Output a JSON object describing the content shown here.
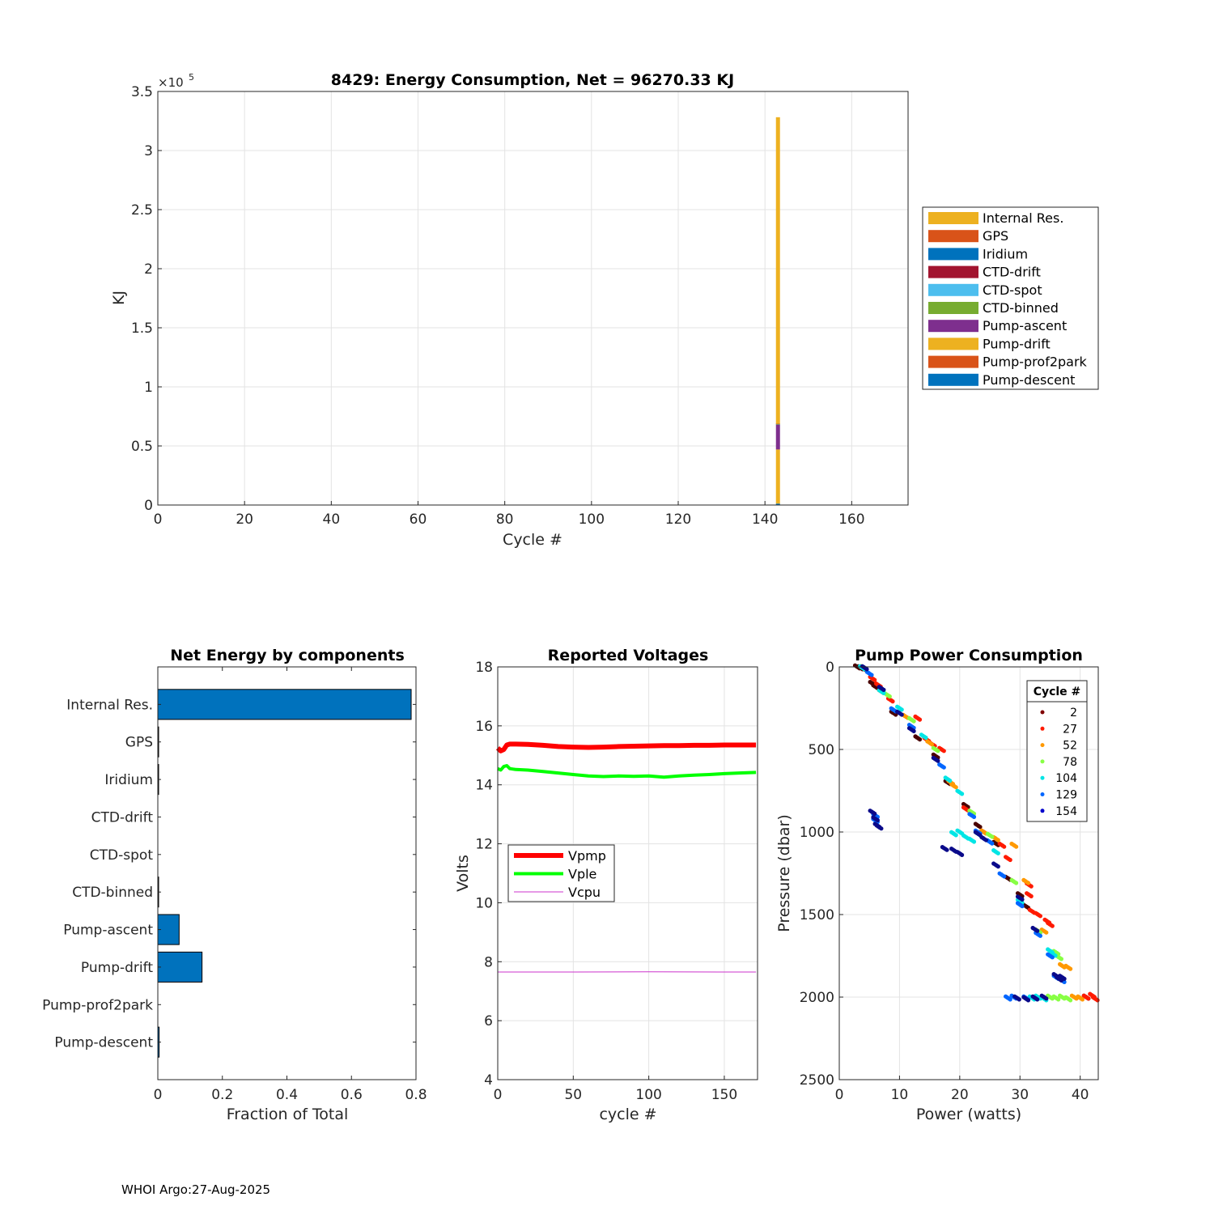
{
  "footer": "WHOI Argo:27-Aug-2025",
  "colors": {
    "yellow": "#EDB120",
    "orange": "#D95319",
    "blue": "#0072BD",
    "darkred": "#A2142F",
    "lightblue": "#4DBEEE",
    "green": "#77AC30",
    "purple": "#7E2F8E",
    "bar_fill": "#0072BD",
    "vpmp": "#FF0000",
    "vple": "#00FF00",
    "vcpu": "#CC33CC"
  },
  "chart_data": [
    {
      "type": "bar",
      "id": "energy",
      "title": "8429: Energy Consumption,  Net = 96270.33 KJ",
      "xlabel": "Cycle #",
      "ylabel": "KJ",
      "y_exponent_label": "×10",
      "y_exponent": "5",
      "xlim": [
        0,
        173
      ],
      "ylim": [
        0,
        350000
      ],
      "xticks": [
        0,
        20,
        40,
        60,
        80,
        100,
        120,
        140,
        160
      ],
      "yticks": [
        0,
        50000,
        100000,
        150000,
        200000,
        250000,
        300000,
        350000
      ],
      "ytick_labels": [
        "0",
        "0.5",
        "1",
        "1.5",
        "2",
        "2.5",
        "3",
        "3.5"
      ],
      "grid": true,
      "stacked": true,
      "legend": [
        "Internal Res.",
        "GPS",
        "Iridium",
        "CTD-drift",
        "CTD-spot",
        "CTD-binned",
        "Pump-ascent",
        "Pump-drift",
        "Pump-prof2park",
        "Pump-descent"
      ],
      "legend_colors": [
        "#EDB120",
        "#D95319",
        "#0072BD",
        "#A2142F",
        "#4DBEEE",
        "#77AC30",
        "#7E2F8E",
        "#EDB120",
        "#D95319",
        "#0072BD"
      ],
      "bar_x": 143,
      "stack_order_bottom_up": [
        "Pump-descent",
        "Pump-prof2park",
        "Pump-drift",
        "Pump-ascent",
        "CTD-binned",
        "CTD-spot",
        "CTD-drift",
        "Iridium",
        "GPS",
        "Internal Res."
      ],
      "stack_values": [
        1200,
        0,
        45800,
        21000,
        600,
        0,
        0,
        100,
        100,
        259400
      ]
    },
    {
      "type": "bar",
      "id": "net_energy",
      "orientation": "horizontal",
      "title": "Net Energy by components",
      "xlabel": "Fraction of Total",
      "xlim": [
        0,
        0.8
      ],
      "xticks": [
        0,
        0.2,
        0.4,
        0.6,
        0.8
      ],
      "xtick_labels": [
        "0",
        "0.2",
        "0.4",
        "0.6",
        "0.8"
      ],
      "categories": [
        "Internal Res.",
        "GPS",
        "Iridium",
        "CTD-drift",
        "CTD-spot",
        "CTD-binned",
        "Pump-ascent",
        "Pump-drift",
        "Pump-prof2park",
        "Pump-descent"
      ],
      "values": [
        0.785,
        0.0003,
        0.0003,
        0,
        0,
        0.002,
        0.066,
        0.137,
        0,
        0.004
      ]
    },
    {
      "type": "line",
      "id": "voltages",
      "title": "Reported Voltages",
      "xlabel": "cycle #",
      "ylabel": "Volts",
      "xlim": [
        0,
        172
      ],
      "ylim": [
        4,
        18
      ],
      "xticks": [
        0,
        50,
        100,
        150
      ],
      "yticks": [
        4,
        6,
        8,
        10,
        12,
        14,
        16,
        18
      ],
      "grid": true,
      "series": [
        {
          "name": "Vpmp",
          "color": "#FF0000",
          "width": 6,
          "x": [
            0,
            2,
            4,
            6,
            8,
            12,
            20,
            30,
            40,
            50,
            60,
            70,
            80,
            90,
            100,
            110,
            120,
            130,
            140,
            150,
            160,
            171
          ],
          "y": [
            15.25,
            15.15,
            15.2,
            15.35,
            15.38,
            15.38,
            15.37,
            15.34,
            15.3,
            15.28,
            15.27,
            15.28,
            15.3,
            15.31,
            15.32,
            15.33,
            15.33,
            15.34,
            15.34,
            15.35,
            15.35,
            15.35
          ]
        },
        {
          "name": "Vple",
          "color": "#00FF00",
          "width": 4,
          "x": [
            0,
            2,
            4,
            6,
            8,
            12,
            20,
            30,
            40,
            50,
            60,
            70,
            80,
            90,
            100,
            110,
            120,
            130,
            140,
            150,
            160,
            171
          ],
          "y": [
            14.55,
            14.5,
            14.62,
            14.65,
            14.55,
            14.52,
            14.5,
            14.45,
            14.4,
            14.35,
            14.3,
            14.28,
            14.3,
            14.29,
            14.3,
            14.26,
            14.3,
            14.33,
            14.35,
            14.38,
            14.4,
            14.42
          ]
        },
        {
          "name": "Vcpu",
          "color": "#CC33CC",
          "width": 1,
          "x": [
            0,
            50,
            100,
            150,
            171
          ],
          "y": [
            7.65,
            7.65,
            7.66,
            7.65,
            7.65
          ]
        }
      ]
    },
    {
      "type": "scatter",
      "id": "pump_power",
      "title": "Pump Power Consumption",
      "xlabel": "Power (watts)",
      "ylabel": "Pressure (dbar)",
      "xlim": [
        0,
        43
      ],
      "ylim": [
        0,
        2500
      ],
      "y_reversed": true,
      "xticks": [
        0,
        10,
        20,
        30,
        40
      ],
      "yticks": [
        0,
        500,
        1000,
        1500,
        2000,
        2500
      ],
      "grid": true,
      "legend_title": "Cycle #",
      "legend": [
        "2",
        "27",
        "52",
        "78",
        "104",
        "129",
        "154"
      ],
      "legend_colors": [
        "#800000",
        "#FF1A00",
        "#FF9900",
        "#88FF44",
        "#00E5E5",
        "#0066FF",
        "#0000CC"
      ],
      "series": [
        {
          "name": "2",
          "color": "#4A0000",
          "points": [
            [
              3,
              0
            ],
            [
              3.5,
              5
            ],
            [
              4,
              10
            ],
            [
              5.5,
              100
            ],
            [
              6,
              120
            ],
            [
              9,
              280
            ],
            [
              13,
              430
            ],
            [
              16,
              540
            ],
            [
              18,
              700
            ],
            [
              21,
              840
            ],
            [
              23,
              960
            ],
            [
              26,
              1070
            ],
            [
              28,
              1280
            ],
            [
              30,
              1380
            ],
            [
              31,
              1450
            ],
            [
              33,
              1600
            ],
            [
              41,
              2000
            ]
          ]
        },
        {
          "name": "27",
          "color": "#FF1A00",
          "points": [
            [
              5.5,
              70
            ],
            [
              6.5,
              110
            ],
            [
              8.5,
              200
            ],
            [
              13,
              310
            ],
            [
              14.5,
              440
            ],
            [
              15.5,
              470
            ],
            [
              17,
              500
            ],
            [
              21,
              860
            ],
            [
              24,
              1000
            ],
            [
              27,
              1080
            ],
            [
              28,
              1160
            ],
            [
              31.5,
              1320
            ],
            [
              31.5,
              1380
            ],
            [
              32,
              1480
            ],
            [
              33,
              1500
            ],
            [
              34.5,
              1540
            ],
            [
              35,
              1560
            ],
            [
              41,
              2000
            ],
            [
              42,
              1990
            ],
            [
              42.5,
              2010
            ]
          ]
        },
        {
          "name": "52",
          "color": "#FF9900",
          "points": [
            [
              4,
              5
            ],
            [
              7,
              150
            ],
            [
              11,
              300
            ],
            [
              15,
              460
            ],
            [
              18.5,
              700
            ],
            [
              19,
              720
            ],
            [
              24,
              1000
            ],
            [
              26,
              1040
            ],
            [
              29,
              1080
            ],
            [
              31,
              1300
            ],
            [
              34,
              1600
            ],
            [
              37,
              1810
            ],
            [
              38,
              1820
            ],
            [
              39,
              2000
            ],
            [
              40,
              2005
            ]
          ]
        },
        {
          "name": "78",
          "color": "#88FF44",
          "points": [
            [
              4,
              5
            ],
            [
              8,
              170
            ],
            [
              12,
              320
            ],
            [
              16,
              500
            ],
            [
              22,
              880
            ],
            [
              25,
              1020
            ],
            [
              29,
              1300
            ],
            [
              33,
              1600
            ],
            [
              36,
              1730
            ],
            [
              36.5,
              1760
            ],
            [
              35,
              2000
            ],
            [
              36,
              2005
            ],
            [
              37,
              2000
            ],
            [
              38,
              2010
            ]
          ]
        },
        {
          "name": "104",
          "color": "#00E5E5",
          "points": [
            [
              3.8,
              5
            ],
            [
              7,
              150
            ],
            [
              10,
              250
            ],
            [
              14,
              420
            ],
            [
              18,
              680
            ],
            [
              20,
              760
            ],
            [
              19,
              1010
            ],
            [
              20,
              1000
            ],
            [
              21,
              1030
            ],
            [
              23,
              1010
            ],
            [
              22,
              1050
            ],
            [
              26,
              1120
            ],
            [
              30,
              1420
            ],
            [
              35,
              1720
            ],
            [
              35.5,
              1740
            ],
            [
              32,
              2005
            ],
            [
              33,
              2000
            ],
            [
              34,
              2010
            ]
          ]
        },
        {
          "name": "129",
          "color": "#0066FF",
          "points": [
            [
              5,
              40
            ],
            [
              6,
              900
            ],
            [
              6,
              930
            ],
            [
              9,
              260
            ],
            [
              12,
              360
            ],
            [
              17,
              600
            ],
            [
              22,
              900
            ],
            [
              23,
              1000
            ],
            [
              25,
              1060
            ],
            [
              27,
              1260
            ],
            [
              30,
              1440
            ],
            [
              33,
              1620
            ],
            [
              35,
              1750
            ],
            [
              36,
              1880
            ],
            [
              37,
              1900
            ],
            [
              28,
              2005
            ],
            [
              29,
              2000
            ],
            [
              31,
              2005
            ]
          ]
        },
        {
          "name": "154",
          "color": "#0A0A8A",
          "points": [
            [
              4.2,
              5
            ],
            [
              5.5,
              880
            ],
            [
              6,
              920
            ],
            [
              6.3,
              960
            ],
            [
              6.6,
              970
            ],
            [
              7,
              130
            ],
            [
              10,
              280
            ],
            [
              12,
              380
            ],
            [
              16,
              560
            ],
            [
              17.5,
              1100
            ],
            [
              19,
              1110
            ],
            [
              20,
              1130
            ],
            [
              23,
              1010
            ],
            [
              24,
              1040
            ],
            [
              26,
              1200
            ],
            [
              30,
              1400
            ],
            [
              32.5,
              1590
            ],
            [
              36,
              1870
            ],
            [
              36.5,
              1890
            ],
            [
              37,
              1880
            ],
            [
              29.5,
              2005
            ],
            [
              31,
              2010
            ],
            [
              32.5,
              2005
            ],
            [
              34,
              2000
            ]
          ]
        }
      ]
    }
  ]
}
